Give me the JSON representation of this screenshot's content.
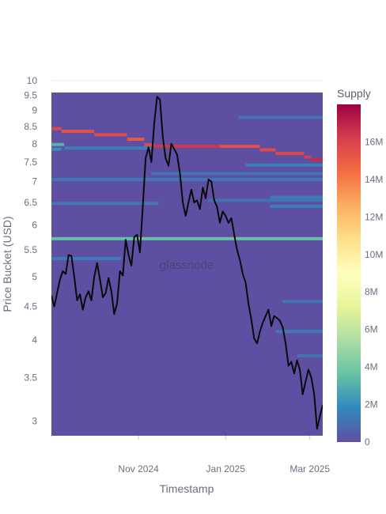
{
  "chart_data": {
    "type": "heatmap",
    "xlabel": "Timestamp",
    "ylabel": "Price Bucket (USD)",
    "yscale": "log",
    "ylim": [
      2.85,
      10
    ],
    "xlim": [
      "2024-09-01",
      "2025-03-10"
    ],
    "x_ticks": [
      {
        "date": "2024-11-01",
        "label": "Nov 2024"
      },
      {
        "date": "2025-01-01",
        "label": "Jan 2025"
      },
      {
        "date": "2025-03-01",
        "label": "Mar 2025"
      }
    ],
    "y_ticks": [
      {
        "value": 10,
        "label": "10"
      },
      {
        "value": 9.5,
        "label": "9.5"
      },
      {
        "value": 9,
        "label": "9"
      },
      {
        "value": 8.5,
        "label": "8.5"
      },
      {
        "value": 8,
        "label": "8"
      },
      {
        "value": 7.5,
        "label": "7.5"
      },
      {
        "value": 7,
        "label": "7"
      },
      {
        "value": 6.5,
        "label": "6.5"
      },
      {
        "value": 6,
        "label": "6"
      },
      {
        "value": 5.5,
        "label": "5.5"
      },
      {
        "value": 5,
        "label": "5"
      },
      {
        "value": 4.5,
        "label": "4.5"
      },
      {
        "value": 4,
        "label": "4"
      },
      {
        "value": 3.5,
        "label": "3.5"
      },
      {
        "value": 3,
        "label": "3"
      }
    ],
    "colorbar": {
      "title": "Supply",
      "min": 0,
      "max": 18000000,
      "ticks": [
        {
          "value": 0,
          "label": "0"
        },
        {
          "value": 2000000,
          "label": "2M"
        },
        {
          "value": 4000000,
          "label": "4M"
        },
        {
          "value": 6000000,
          "label": "6M"
        },
        {
          "value": 8000000,
          "label": "8M"
        },
        {
          "value": 10000000,
          "label": "10M"
        },
        {
          "value": 12000000,
          "label": "12M"
        },
        {
          "value": 14000000,
          "label": "14M"
        },
        {
          "value": 16000000,
          "label": "16M"
        }
      ],
      "colors": [
        "#5e4fa2",
        "#3288bd",
        "#66c2a5",
        "#abdda4",
        "#e6f598",
        "#ffffbf",
        "#fee08b",
        "#fdae61",
        "#f46d43",
        "#d53e4f",
        "#9e0142"
      ]
    },
    "watermark": "glassnode",
    "supply_bands": [
      {
        "start": "2024-09-01",
        "end": "2024-09-08",
        "price": 8.44,
        "supply": 15800000
      },
      {
        "start": "2024-09-08",
        "end": "2024-10-01",
        "price": 8.36,
        "supply": 15400000
      },
      {
        "start": "2024-10-01",
        "end": "2024-10-24",
        "price": 8.26,
        "supply": 15600000
      },
      {
        "start": "2024-10-24",
        "end": "2024-11-05",
        "price": 8.13,
        "supply": 15200000
      },
      {
        "start": "2024-11-05",
        "end": "2024-11-12",
        "price": 7.97,
        "supply": 15600000
      },
      {
        "start": "2024-11-12",
        "end": "2024-12-28",
        "price": 7.93,
        "supply": 16400000
      },
      {
        "start": "2024-12-28",
        "end": "2025-01-25",
        "price": 7.93,
        "supply": 15600000
      },
      {
        "start": "2025-01-25",
        "end": "2025-02-05",
        "price": 7.83,
        "supply": 15600000
      },
      {
        "start": "2025-02-05",
        "end": "2025-02-25",
        "price": 7.73,
        "supply": 15800000
      },
      {
        "start": "2025-02-25",
        "end": "2025-03-02",
        "price": 7.63,
        "supply": 16200000
      },
      {
        "start": "2025-03-02",
        "end": "2025-03-10",
        "price": 7.56,
        "supply": 16800000
      },
      {
        "start": "2024-09-01",
        "end": "2025-03-10",
        "price": 5.72,
        "supply": 3600000
      },
      {
        "start": "2024-09-01",
        "end": "2024-09-10",
        "price": 7.98,
        "supply": 3000000
      },
      {
        "start": "2024-09-10",
        "end": "2024-11-10",
        "price": 7.88,
        "supply": 1500000
      },
      {
        "start": "2024-09-01",
        "end": "2024-09-08",
        "price": 7.85,
        "supply": 2000000
      },
      {
        "start": "2024-09-01",
        "end": "2025-03-10",
        "price": 7.05,
        "supply": 1300000
      },
      {
        "start": "2024-09-01",
        "end": "2024-11-15",
        "price": 6.48,
        "supply": 1200000
      },
      {
        "start": "2024-09-01",
        "end": "2024-10-20",
        "price": 5.33,
        "supply": 1400000
      },
      {
        "start": "2025-01-10",
        "end": "2025-03-10",
        "price": 8.78,
        "supply": 1200000
      },
      {
        "start": "2025-01-15",
        "end": "2025-03-10",
        "price": 7.42,
        "supply": 1600000
      },
      {
        "start": "2025-02-01",
        "end": "2025-03-10",
        "price": 6.62,
        "supply": 1400000
      },
      {
        "start": "2025-02-01",
        "end": "2025-03-10",
        "price": 6.41,
        "supply": 1500000
      },
      {
        "start": "2024-11-10",
        "end": "2025-03-10",
        "price": 7.2,
        "supply": 1200000
      },
      {
        "start": "2024-12-20",
        "end": "2025-03-10",
        "price": 6.55,
        "supply": 1100000
      },
      {
        "start": "2025-02-10",
        "end": "2025-03-10",
        "price": 4.58,
        "supply": 1200000
      },
      {
        "start": "2025-02-05",
        "end": "2025-03-10",
        "price": 4.12,
        "supply": 1300000
      },
      {
        "start": "2025-02-20",
        "end": "2025-03-10",
        "price": 3.78,
        "supply": 1100000
      }
    ],
    "price_series": {
      "x": [
        "2024-09-01",
        "2024-09-03",
        "2024-09-05",
        "2024-09-07",
        "2024-09-09",
        "2024-09-11",
        "2024-09-13",
        "2024-09-15",
        "2024-09-17",
        "2024-09-19",
        "2024-09-21",
        "2024-09-23",
        "2024-09-25",
        "2024-09-27",
        "2024-09-29",
        "2024-10-01",
        "2024-10-03",
        "2024-10-05",
        "2024-10-07",
        "2024-10-09",
        "2024-10-11",
        "2024-10-13",
        "2024-10-15",
        "2024-10-17",
        "2024-10-19",
        "2024-10-21",
        "2024-10-23",
        "2024-10-25",
        "2024-10-27",
        "2024-10-29",
        "2024-10-31",
        "2024-11-02",
        "2024-11-04",
        "2024-11-06",
        "2024-11-08",
        "2024-11-10",
        "2024-11-12",
        "2024-11-14",
        "2024-11-16",
        "2024-11-18",
        "2024-11-20",
        "2024-11-22",
        "2024-11-24",
        "2024-11-26",
        "2024-11-28",
        "2024-11-30",
        "2024-12-02",
        "2024-12-04",
        "2024-12-06",
        "2024-12-08",
        "2024-12-10",
        "2024-12-12",
        "2024-12-14",
        "2024-12-16",
        "2024-12-18",
        "2024-12-20",
        "2024-12-22",
        "2024-12-24",
        "2024-12-26",
        "2024-12-28",
        "2024-12-30",
        "2025-01-01",
        "2025-01-03",
        "2025-01-05",
        "2025-01-07",
        "2025-01-09",
        "2025-01-11",
        "2025-01-13",
        "2025-01-15",
        "2025-01-17",
        "2025-01-19",
        "2025-01-21",
        "2025-01-23",
        "2025-01-25",
        "2025-01-27",
        "2025-01-29",
        "2025-01-31",
        "2025-02-02",
        "2025-02-04",
        "2025-02-06",
        "2025-02-08",
        "2025-02-10",
        "2025-02-12",
        "2025-02-14",
        "2025-02-16",
        "2025-02-18",
        "2025-02-20",
        "2025-02-22",
        "2025-02-24",
        "2025-02-26",
        "2025-02-28",
        "2025-03-02",
        "2025-03-04",
        "2025-03-06",
        "2025-03-08",
        "2025-03-10"
      ],
      "y": [
        4.68,
        4.5,
        4.72,
        4.95,
        5.1,
        5.05,
        5.4,
        5.38,
        5.0,
        4.6,
        4.7,
        4.45,
        4.65,
        4.75,
        4.6,
        5.0,
        5.25,
        4.95,
        4.65,
        4.72,
        4.98,
        4.75,
        4.38,
        4.55,
        5.1,
        5.02,
        5.7,
        5.4,
        5.2,
        5.75,
        5.8,
        5.45,
        6.4,
        7.6,
        7.9,
        7.5,
        8.6,
        9.45,
        9.35,
        8.2,
        7.6,
        7.4,
        8.0,
        7.85,
        7.7,
        7.2,
        6.5,
        6.2,
        6.5,
        6.8,
        6.5,
        6.55,
        6.35,
        6.85,
        6.6,
        7.05,
        7.0,
        6.55,
        6.4,
        6.05,
        6.3,
        6.2,
        6.05,
        6.15,
        5.8,
        5.5,
        5.3,
        5.05,
        4.9,
        4.55,
        4.3,
        4.02,
        3.95,
        4.12,
        4.25,
        4.35,
        4.45,
        4.2,
        4.35,
        4.32,
        4.28,
        4.18,
        3.95,
        3.65,
        3.7,
        3.55,
        3.72,
        3.6,
        3.3,
        3.45,
        3.6,
        3.5,
        3.3,
        2.92,
        3.05,
        3.18
      ]
    }
  }
}
